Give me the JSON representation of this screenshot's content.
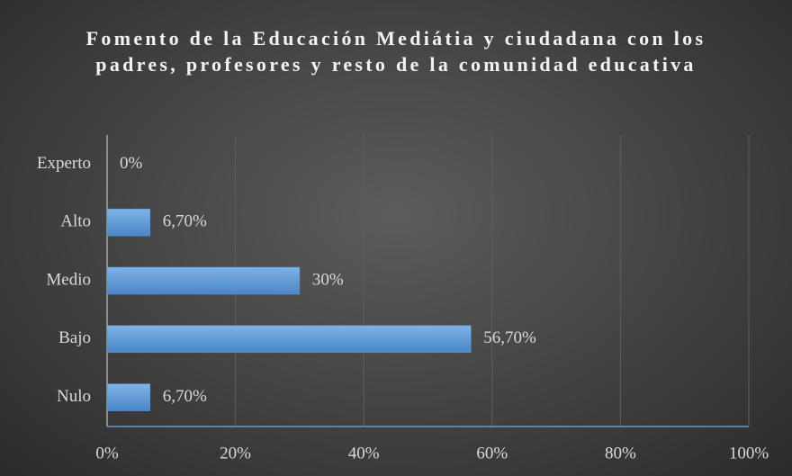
{
  "chart_data": {
    "type": "hbar",
    "title": "Fomento de la Educación Mediátia y ciudadana con los padres, profesores y resto de la comunidad educativa",
    "categories": [
      "Experto",
      "Alto",
      "Medio",
      "Bajo",
      "Nulo"
    ],
    "values": [
      0,
      6.7,
      30,
      56.7,
      6.7
    ],
    "value_labels": [
      "0%",
      "6,70%",
      "30%",
      "56,70%",
      "6,70%"
    ],
    "color": "#5b9bd5",
    "xlim": [
      0,
      100
    ],
    "xticks": [
      {
        "value": 0,
        "label": "0%"
      },
      {
        "value": 20,
        "label": "20%"
      },
      {
        "value": 40,
        "label": "40%"
      },
      {
        "value": 60,
        "label": "60%"
      },
      {
        "value": 80,
        "label": "80%"
      },
      {
        "value": 100,
        "label": "100%"
      }
    ],
    "grid": true
  }
}
